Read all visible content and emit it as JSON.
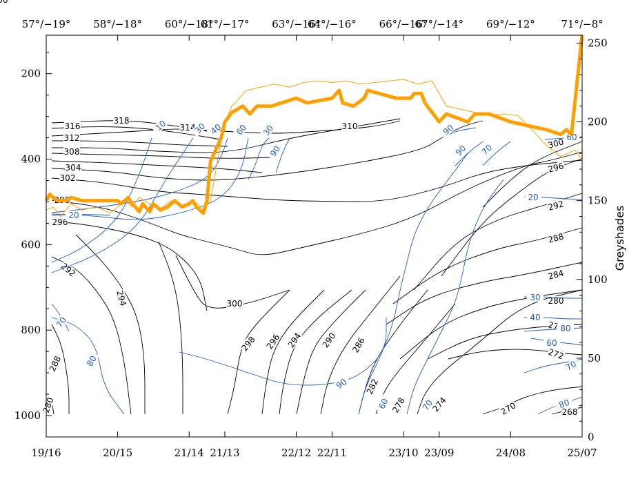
{
  "chart_data": {
    "type": "line",
    "left_axis": {
      "ticks": [
        200,
        400,
        600,
        800,
        1000
      ],
      "range": [
        1050,
        110
      ],
      "inverted": true
    },
    "right_axis": {
      "label": "Greyshades",
      "ticks": [
        0,
        50,
        100,
        150,
        200,
        250
      ],
      "range": [
        0,
        255
      ]
    },
    "bottom_axis": {
      "labels": [
        "19/16",
        "20/15",
        "21/14",
        "21/13",
        "22/12",
        "22/11",
        "23/10",
        "23/09",
        "24/08",
        "25/07"
      ],
      "positions": [
        0,
        1,
        2,
        2.5,
        3.5,
        4,
        5,
        5.5,
        6.5,
        7.5
      ],
      "range": [
        0,
        7.5
      ]
    },
    "top_axis": {
      "labels": [
        "57°/−19°",
        "58°/−18°",
        "60°/−18°",
        "61°/−17°",
        "63°/−16°",
        "64°/−16°",
        "66°/−16°",
        "67°/−14°",
        "69°/−12°",
        "71°/−8°"
      ],
      "positions": [
        0,
        1,
        2,
        2.5,
        3.5,
        4,
        5,
        5.5,
        6.5,
        7.5
      ]
    },
    "colors": {
      "theta_contours": "#000000",
      "humidity_contours": "#1f5fd0",
      "greyshade_thick": "#ffa000",
      "greyshade_thin": "#ffa000"
    },
    "series": [
      {
        "style": "thick",
        "axis": "right",
        "x": [
          0,
          0.05,
          0.15,
          0.3,
          0.35,
          0.5,
          0.8,
          1.0,
          1.05,
          1.15,
          1.2,
          1.25,
          1.3,
          1.35,
          1.45,
          1.5,
          1.6,
          1.7,
          1.8,
          1.9,
          2.0,
          2.05,
          2.1,
          2.15,
          2.2,
          2.25,
          2.3,
          2.45,
          2.5,
          2.6,
          2.75,
          2.85,
          2.95,
          3.15,
          3.5,
          3.65,
          4.0,
          4.1,
          4.15,
          4.3,
          4.45,
          4.5,
          4.9,
          5.1,
          5.15,
          5.25,
          5.3,
          5.5,
          5.6,
          5.9,
          6.0,
          6.2,
          6.5,
          7.0,
          7.2,
          7.28,
          7.35,
          7.5
        ],
        "y": [
          150,
          154,
          150,
          150,
          152,
          150,
          150,
          150,
          148,
          152,
          148,
          146,
          143,
          148,
          143,
          148,
          144,
          146,
          150,
          146,
          148,
          150,
          146,
          144,
          142,
          150,
          175,
          190,
          200,
          206,
          210,
          205,
          210,
          210,
          215,
          212,
          215,
          220,
          212,
          210,
          215,
          220,
          215,
          215,
          218,
          218,
          212,
          200,
          205,
          200,
          205,
          205,
          200,
          195,
          192,
          195,
          192,
          255
        ]
      },
      {
        "style": "thin",
        "axis": "right",
        "x": [
          0,
          0.1,
          0.2,
          0.35,
          0.5,
          0.7,
          0.9,
          1.1,
          1.2,
          1.3,
          1.45,
          1.6,
          1.75,
          1.9,
          2.05,
          2.2,
          2.3,
          2.4,
          2.5,
          2.6,
          2.7,
          2.8,
          3.0,
          3.2,
          3.4,
          3.6,
          3.8,
          4.0,
          4.2,
          4.4,
          4.6,
          4.8,
          5.0,
          5.2,
          5.4,
          5.6,
          5.8,
          6.0,
          6.2,
          6.4,
          6.6,
          6.8,
          7.0,
          7.2,
          7.4,
          7.5
        ],
        "y": [
          144,
          146,
          140,
          148,
          144,
          146,
          142,
          150,
          146,
          152,
          148,
          145,
          150,
          146,
          150,
          145,
          150,
          176,
          200,
          210,
          215,
          220,
          222,
          224,
          222,
          225,
          226,
          225,
          226,
          224,
          225,
          226,
          227,
          224,
          226,
          210,
          208,
          206,
          204,
          205,
          204,
          195,
          185,
          178,
          182,
          176
        ]
      }
    ]
  }
}
